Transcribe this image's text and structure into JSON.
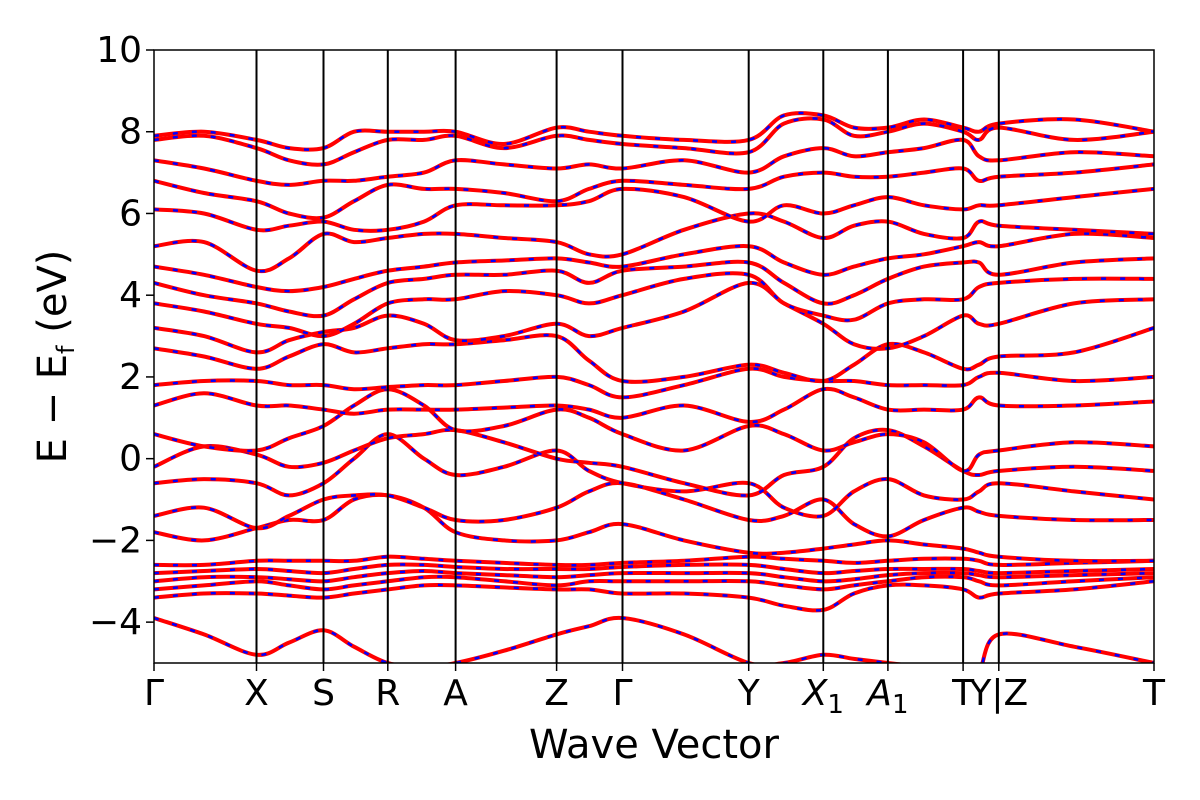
{
  "chart_data": {
    "type": "line",
    "title": "",
    "xlabel": "Wave Vector",
    "ylabel_parts": {
      "main": "E − E",
      "sub": "f",
      "unit": " (eV)"
    },
    "ylim": [
      -5,
      10
    ],
    "yticks": [
      {
        "value": -4,
        "label": "−4"
      },
      {
        "value": -2,
        "label": "−2"
      },
      {
        "value": 0,
        "label": "0"
      },
      {
        "value": 2,
        "label": "2"
      },
      {
        "value": 4,
        "label": "4"
      },
      {
        "value": 6,
        "label": "6"
      },
      {
        "value": 8,
        "label": "8"
      },
      {
        "value": 10,
        "label": "10"
      }
    ],
    "xlim": [
      0,
      1
    ],
    "kpoints": [
      {
        "pos": 0.0,
        "label": "Γ"
      },
      {
        "pos": 0.1025,
        "label": "X"
      },
      {
        "pos": 0.1695,
        "label": "S"
      },
      {
        "pos": 0.2338,
        "label": "R"
      },
      {
        "pos": 0.3016,
        "label": "A"
      },
      {
        "pos": 0.4026,
        "label": "Z"
      },
      {
        "pos": 0.4685,
        "label": "Γ"
      },
      {
        "pos": 0.5947,
        "label": "Y"
      },
      {
        "pos": 0.6693,
        "label": "X",
        "sub": "1"
      },
      {
        "pos": 0.7339,
        "label": "A",
        "sub": "1"
      },
      {
        "pos": 0.8091,
        "label": "T"
      },
      {
        "pos": 0.8448,
        "label": "Y|Z",
        "break": true
      },
      {
        "pos": 1.0,
        "label": "T"
      }
    ],
    "grid": false,
    "legend": "none",
    "line_style": "red solid with blue dashed overlay (two overlapping spin channels)",
    "colors": {
      "up": "#ff0000",
      "down": "#0000ff",
      "vline": "#000000"
    },
    "x_samples": [
      0,
      0.05,
      0.1025,
      0.135,
      0.1695,
      0.2,
      0.2338,
      0.27,
      0.3016,
      0.35,
      0.4026,
      0.435,
      0.4685,
      0.53,
      0.5947,
      0.63,
      0.6693,
      0.7,
      0.7339,
      0.77,
      0.8091,
      0.825,
      0.8448,
      0.92,
      1.0
    ],
    "bands": [
      [
        -3.9,
        -4.3,
        -4.8,
        -4.5,
        -4.2,
        -4.6,
        -5.0,
        -5.1,
        -5.0,
        -4.7,
        -4.3,
        -4.1,
        -3.9,
        -4.3,
        -5.0,
        -5.0,
        -4.8,
        -4.9,
        -5.0,
        -5.1,
        -5.2,
        -5.2,
        -4.3,
        -4.6,
        -5.0
      ],
      [
        -3.4,
        -3.3,
        -3.3,
        -3.35,
        -3.4,
        -3.3,
        -3.2,
        -3.1,
        -3.1,
        -3.15,
        -3.2,
        -3.2,
        -3.3,
        -3.3,
        -3.4,
        -3.6,
        -3.7,
        -3.3,
        -3.1,
        -3.1,
        -3.2,
        -3.4,
        -3.3,
        -3.2,
        -3.0
      ],
      [
        -3.2,
        -3.1,
        -3.0,
        -3.1,
        -3.2,
        -3.1,
        -3.0,
        -2.9,
        -2.9,
        -3.0,
        -3.1,
        -3.0,
        -3.0,
        -3.0,
        -3.0,
        -3.1,
        -3.2,
        -3.1,
        -3.0,
        -2.9,
        -2.9,
        -3.0,
        -3.1,
        -3.0,
        -2.9
      ],
      [
        -3.0,
        -2.9,
        -2.9,
        -2.95,
        -3.0,
        -2.9,
        -2.8,
        -2.75,
        -2.8,
        -2.85,
        -2.9,
        -2.85,
        -2.8,
        -2.8,
        -2.8,
        -2.9,
        -3.0,
        -2.95,
        -2.85,
        -2.8,
        -2.8,
        -2.85,
        -2.9,
        -2.85,
        -2.8
      ],
      [
        -2.8,
        -2.75,
        -2.7,
        -2.75,
        -2.8,
        -2.7,
        -2.6,
        -2.6,
        -2.65,
        -2.7,
        -2.7,
        -2.7,
        -2.65,
        -2.6,
        -2.6,
        -2.7,
        -2.8,
        -2.75,
        -2.7,
        -2.7,
        -2.7,
        -2.75,
        -2.8,
        -2.75,
        -2.7
      ],
      [
        -2.6,
        -2.6,
        -2.5,
        -2.5,
        -2.5,
        -2.5,
        -2.4,
        -2.45,
        -2.5,
        -2.55,
        -2.6,
        -2.6,
        -2.55,
        -2.5,
        -2.4,
        -2.45,
        -2.5,
        -2.55,
        -2.5,
        -2.45,
        -2.45,
        -2.5,
        -2.6,
        -2.55,
        -2.5
      ],
      [
        -1.8,
        -2.0,
        -1.7,
        -1.5,
        -1.5,
        -1.0,
        -0.9,
        -1.2,
        -1.8,
        -2.0,
        -2.0,
        -1.8,
        -1.6,
        -2.0,
        -2.3,
        -2.3,
        -2.2,
        -2.1,
        -2.0,
        -2.1,
        -2.2,
        -2.3,
        -2.4,
        -2.5,
        -2.5
      ],
      [
        -1.4,
        -1.2,
        -1.7,
        -1.4,
        -1.0,
        -0.9,
        -0.9,
        -1.2,
        -1.5,
        -1.5,
        -1.2,
        -0.8,
        -0.6,
        -1.0,
        -1.5,
        -1.4,
        -1.0,
        -1.6,
        -1.9,
        -1.5,
        -1.2,
        -1.3,
        -1.4,
        -1.5,
        -1.5
      ],
      [
        -0.6,
        -0.5,
        -0.6,
        -0.9,
        -0.6,
        0.0,
        0.6,
        0.0,
        -0.4,
        -0.2,
        0.2,
        -0.3,
        -0.6,
        -0.8,
        -0.6,
        -1.2,
        -1.4,
        -0.8,
        -0.5,
        -0.9,
        -1.0,
        -0.8,
        -0.6,
        -0.8,
        -1.0
      ],
      [
        -0.2,
        0.3,
        0.1,
        -0.2,
        -0.1,
        0.2,
        0.5,
        0.6,
        0.7,
        0.4,
        0.0,
        -0.1,
        -0.2,
        -0.6,
        -0.9,
        -0.4,
        -0.2,
        0.5,
        0.7,
        0.3,
        -0.3,
        -0.4,
        -0.3,
        -0.2,
        -0.3
      ],
      [
        0.6,
        0.3,
        0.2,
        0.5,
        0.8,
        1.3,
        1.7,
        1.3,
        0.7,
        0.8,
        1.2,
        1.0,
        0.6,
        0.2,
        0.8,
        0.6,
        0.2,
        0.4,
        0.6,
        0.4,
        -0.3,
        0.1,
        0.2,
        0.4,
        0.3
      ],
      [
        1.3,
        1.6,
        1.3,
        1.3,
        1.2,
        1.1,
        1.2,
        1.2,
        1.2,
        1.25,
        1.3,
        1.2,
        1.0,
        1.3,
        0.9,
        1.2,
        1.7,
        1.5,
        1.2,
        1.2,
        1.2,
        1.5,
        1.3,
        1.3,
        1.4
      ],
      [
        1.8,
        1.9,
        1.9,
        1.8,
        1.8,
        1.7,
        1.75,
        1.8,
        1.8,
        1.9,
        2.0,
        1.8,
        1.5,
        1.8,
        2.2,
        2.0,
        1.9,
        1.9,
        1.8,
        1.8,
        1.8,
        2.0,
        2.1,
        1.9,
        2.0
      ],
      [
        2.7,
        2.5,
        2.2,
        2.5,
        2.8,
        2.6,
        2.7,
        2.8,
        2.8,
        2.9,
        3.0,
        2.4,
        1.9,
        2.0,
        2.3,
        2.1,
        1.9,
        2.3,
        2.8,
        2.6,
        2.2,
        2.3,
        2.5,
        2.6,
        3.2
      ],
      [
        3.2,
        3.0,
        2.6,
        2.9,
        3.1,
        3.2,
        3.5,
        3.3,
        2.9,
        3.0,
        3.3,
        3.0,
        3.2,
        3.6,
        4.3,
        3.8,
        3.3,
        2.8,
        2.7,
        3.0,
        3.5,
        3.3,
        3.3,
        3.8,
        3.9
      ],
      [
        3.8,
        3.6,
        3.3,
        3.2,
        3.0,
        3.3,
        3.8,
        3.9,
        3.9,
        4.1,
        4.0,
        3.8,
        4.0,
        4.4,
        4.5,
        3.8,
        3.5,
        3.4,
        3.8,
        3.9,
        3.9,
        4.2,
        4.3,
        4.4,
        4.4
      ],
      [
        4.3,
        4.0,
        3.8,
        3.6,
        3.5,
        3.9,
        4.3,
        4.4,
        4.5,
        4.5,
        4.6,
        4.3,
        4.6,
        4.7,
        4.8,
        4.3,
        3.8,
        4.0,
        4.4,
        4.7,
        4.8,
        4.8,
        4.5,
        4.8,
        4.9
      ],
      [
        4.7,
        4.5,
        4.2,
        4.1,
        4.2,
        4.4,
        4.6,
        4.7,
        4.8,
        4.85,
        4.9,
        4.8,
        4.7,
        5.0,
        5.2,
        4.8,
        4.5,
        4.7,
        4.9,
        5.0,
        5.2,
        5.3,
        5.2,
        5.5,
        5.4
      ],
      [
        5.2,
        5.3,
        4.6,
        4.9,
        5.5,
        5.3,
        5.4,
        5.5,
        5.5,
        5.4,
        5.3,
        5.0,
        5.0,
        5.6,
        6.0,
        5.8,
        5.4,
        5.7,
        5.8,
        5.5,
        5.4,
        5.8,
        5.7,
        5.6,
        5.5
      ],
      [
        6.1,
        6.0,
        5.6,
        5.7,
        5.8,
        5.6,
        5.6,
        5.8,
        6.2,
        6.2,
        6.2,
        6.3,
        6.6,
        6.4,
        5.8,
        6.2,
        6.0,
        6.2,
        6.4,
        6.2,
        6.1,
        6.2,
        6.2,
        6.4,
        6.6
      ],
      [
        6.8,
        6.5,
        6.3,
        6.0,
        5.9,
        6.3,
        6.7,
        6.6,
        6.6,
        6.5,
        6.3,
        6.6,
        6.8,
        6.7,
        6.6,
        6.9,
        7.0,
        6.9,
        6.9,
        7.0,
        7.1,
        6.8,
        6.9,
        7.0,
        7.2
      ],
      [
        7.3,
        7.1,
        6.8,
        6.7,
        6.8,
        6.8,
        6.9,
        7.0,
        7.3,
        7.2,
        7.1,
        7.2,
        7.1,
        7.3,
        7.0,
        7.4,
        7.6,
        7.4,
        7.5,
        7.6,
        7.8,
        7.4,
        7.3,
        7.5,
        7.4
      ],
      [
        7.8,
        7.9,
        7.6,
        7.3,
        7.2,
        7.5,
        7.8,
        7.8,
        7.9,
        7.6,
        7.9,
        7.8,
        7.7,
        7.6,
        7.5,
        8.2,
        8.3,
        7.9,
        8.0,
        8.2,
        8.0,
        7.8,
        8.1,
        7.8,
        8.0
      ],
      [
        7.9,
        8.0,
        7.8,
        7.6,
        7.6,
        8.0,
        8.0,
        8.0,
        8.0,
        7.7,
        8.1,
        8.0,
        7.9,
        7.8,
        7.8,
        8.4,
        8.4,
        8.1,
        8.1,
        8.3,
        8.1,
        8.0,
        8.2,
        8.3,
        8.0
      ]
    ]
  }
}
